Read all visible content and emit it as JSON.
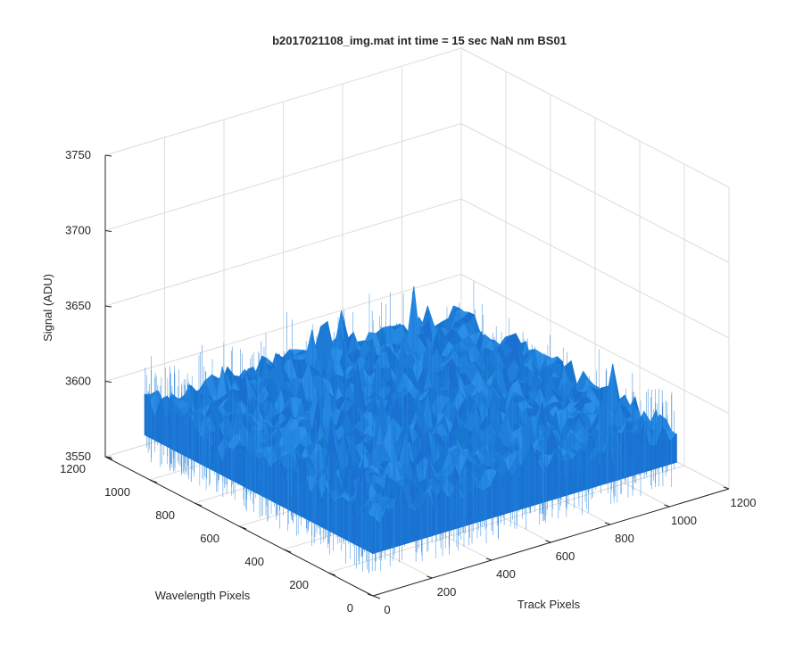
{
  "chart_data": {
    "type": "surface",
    "title": "b2017021108_img.mat int time = 15 sec  NaN nm BS01",
    "xlabel": "Track Pixels",
    "ylabel": "Wavelength Pixels",
    "zlabel": "Signal (ADU)",
    "xlim": [
      0,
      1200
    ],
    "ylim": [
      0,
      1200
    ],
    "zlim": [
      3550,
      3750
    ],
    "x_ticks": [
      "0",
      "200",
      "400",
      "600",
      "800",
      "1000",
      "1200"
    ],
    "y_ticks": [
      "0",
      "200",
      "400",
      "600",
      "800",
      "1000",
      "1200"
    ],
    "z_ticks": [
      "3550",
      "3600",
      "3650",
      "3700",
      "3750"
    ],
    "surface": {
      "x_range": [
        0,
        1024
      ],
      "y_range": [
        0,
        1024
      ],
      "mean_signal": 3600,
      "noise_range": [
        3570,
        3660
      ],
      "color": "#1f7fd9"
    },
    "grid": true
  }
}
